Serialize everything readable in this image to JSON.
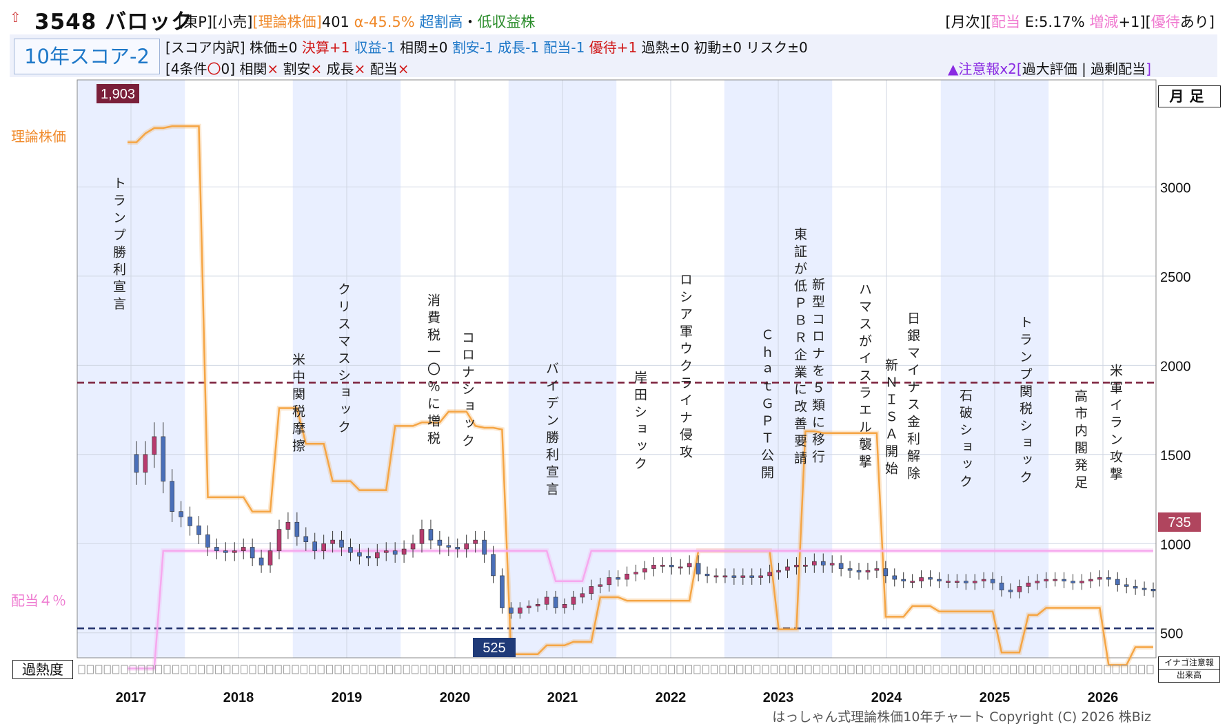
{
  "header": {
    "arrow_icon": "up-arrow-icon",
    "code_name": "3548 バロック",
    "tag_market": "[東P][小売]",
    "tag_theory": "[理論株価]",
    "theory_value": "401",
    "alpha": "α-45.5%",
    "rating": "超割高",
    "dot": "・",
    "yield_label": "低収益株",
    "right_monthly": "[月次]",
    "right_div_open": "[",
    "right_div": "配当",
    "right_eps": " E:5.17%",
    "right_change": " 増減",
    "right_change_val": "+1]",
    "right_yutai_open": "[",
    "right_yutai": "優待",
    "right_yutai_tail": "あり]"
  },
  "score": {
    "label": "10年スコア-2",
    "breakdown_prefix": "[スコア内訳] 株価±0",
    "kessan": "決算+1",
    "shueki": "収益-1",
    "sokan": "相関±0",
    "wariyasu": "割安-1",
    "seicho": "成長-1",
    "haito": "配当-1",
    "yutai": "優待+1",
    "kanetsu": "過熱±0",
    "shodo": "初動±0",
    "risk": "リスク±0",
    "conditions_prefix": "[4条件",
    "conditions_circle": "〇",
    "conditions_count": "0]",
    "cond_sokan": "相関",
    "cond_wariyasu": "割安",
    "cond_seicho": "成長",
    "cond_haito": "配当",
    "cross": "×",
    "warning": "▲注意報x2",
    "warning_detail_open": "[",
    "warning_detail": "過大評価 | 過剰配当",
    "warning_detail_close": "]"
  },
  "labels": {
    "theory_price": "理論株価",
    "dividend_4pct": "配当４％",
    "monthly_foot": "月足",
    "overheat": "過熱度",
    "inago": "イナゴ注意報",
    "volume": "出来高",
    "copyright": "はっしゃん式理論株価10年チャート Copyright (C) 2026 株Biz"
  },
  "colors": {
    "up": "#b83a6e",
    "down": "#4a6fb8",
    "theory": "#f5a544",
    "dividend": "#f6a8ee",
    "high_line": "#7a1f3a",
    "low_line": "#1f2f6a",
    "band": "#e9efff"
  },
  "chart_data": {
    "type": "candlestick",
    "title": "3548 バロック",
    "yaxis": {
      "ticks": [
        500,
        1000,
        1500,
        2000,
        2500,
        3000
      ],
      "range": [
        360,
        3600
      ]
    },
    "xaxis": {
      "years": [
        "2017",
        "2018",
        "2019",
        "2020",
        "2021",
        "2022",
        "2023",
        "2024",
        "2025",
        "2026"
      ]
    },
    "high_marker": 1903,
    "low_marker": 525,
    "last_price": 735,
    "series": [
      {
        "name": "理論株価",
        "values": [
          3250,
          3250,
          3300,
          3330,
          3330,
          3340,
          3340,
          3340,
          3340,
          1260,
          1260,
          1260,
          1260,
          1260,
          1180,
          1180,
          1180,
          1760,
          1760,
          1760,
          1560,
          1560,
          1560,
          1350,
          1350,
          1350,
          1300,
          1300,
          1300,
          1300,
          1660,
          1660,
          1660,
          1680,
          1680,
          1680,
          1740,
          1740,
          1740,
          1660,
          1650,
          1650,
          1640,
          380,
          380,
          380,
          380,
          430,
          430,
          430,
          450,
          450,
          450,
          700,
          700,
          700,
          680,
          680,
          680,
          680,
          680,
          680,
          680,
          680,
          960,
          960,
          960,
          960,
          960,
          960,
          960,
          960,
          960,
          520,
          520,
          520,
          1630,
          1630,
          1620,
          1620,
          1620,
          1620,
          1620,
          1620,
          1620,
          590,
          590,
          590,
          650,
          650,
          650,
          620,
          620,
          620,
          620,
          620,
          620,
          620,
          390,
          390,
          390,
          600,
          600,
          640,
          640,
          640,
          640,
          640,
          640,
          640,
          320,
          320,
          320,
          420,
          420,
          420
        ]
      },
      {
        "name": "配当４％",
        "values": [
          300,
          300,
          300,
          300,
          960,
          960,
          960,
          960,
          960,
          960,
          960,
          960,
          960,
          960,
          960,
          960,
          960,
          960,
          960,
          960,
          960,
          960,
          960,
          960,
          960,
          960,
          960,
          960,
          960,
          960,
          960,
          960,
          960,
          960,
          960,
          960,
          960,
          960,
          960,
          960,
          960,
          960,
          960,
          960,
          960,
          960,
          960,
          960,
          790,
          790,
          790,
          790,
          960,
          960,
          960,
          960,
          960,
          960,
          960,
          960,
          960,
          960,
          960,
          960,
          960,
          960,
          960,
          960,
          960,
          960,
          960,
          960,
          960,
          960,
          960,
          960,
          960,
          960,
          960,
          960,
          960,
          960,
          960,
          960,
          960,
          960,
          960,
          960,
          960,
          960,
          960,
          960,
          960,
          960,
          960,
          960,
          960,
          960,
          960,
          960,
          960,
          960,
          960,
          960,
          960,
          960,
          960,
          960,
          960,
          960,
          960,
          960,
          960,
          960,
          960,
          960
        ]
      }
    ],
    "events": [
      "トランプ勝利宣言",
      "米中関税摩擦",
      "クリスマスショック",
      "消費税一〇％に増税",
      "コロナショック",
      "バイデン勝利宣言",
      "岸田ショック",
      "ロシア軍ウクライナ侵攻",
      "ＣｈａｔＧＰＴ公開",
      "東証が低ＰＢＲ企業に改善要請",
      "新型コロナを５類に移行",
      "ハマスがイスラエル襲撃",
      "新ＮＩＳＡ開始",
      "日銀マイナス金利解除",
      "石破ショック",
      "トランプ関税ショック",
      "高市内閣発足",
      "米軍イラン攻撃"
    ],
    "grid": true
  }
}
